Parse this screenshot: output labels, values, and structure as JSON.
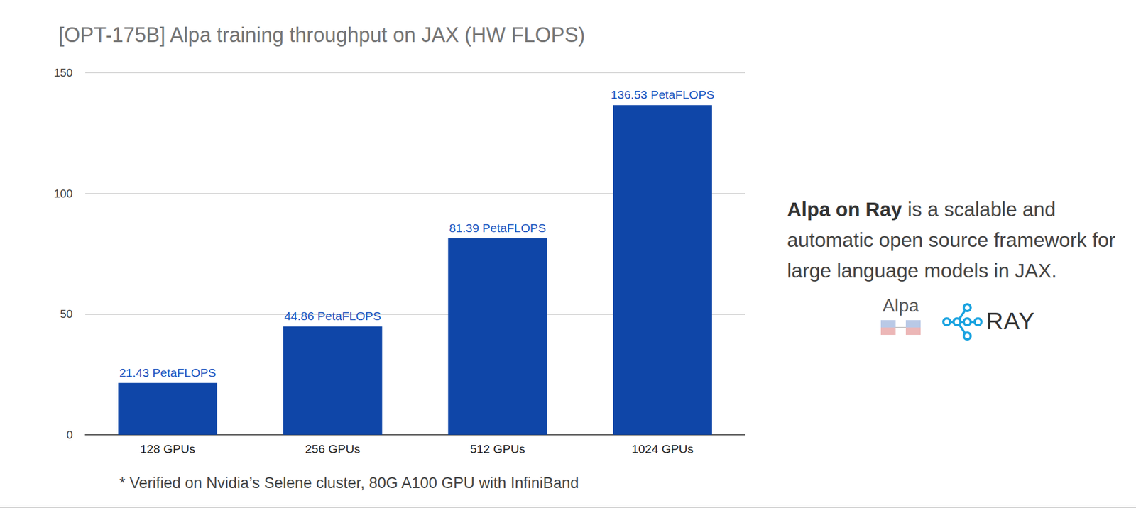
{
  "chart_data": {
    "type": "bar",
    "title": "[OPT-175B] Alpa training throughput on JAX (HW FLOPS)",
    "categories": [
      "128 GPUs",
      "256 GPUs",
      "512 GPUs",
      "1024 GPUs"
    ],
    "values": [
      21.43,
      44.86,
      81.39,
      136.53
    ],
    "value_labels": [
      "21.43 PetaFLOPS",
      "44.86 PetaFLOPS",
      "81.39 PetaFLOPS",
      "136.53 PetaFLOPS"
    ],
    "data_labels": true,
    "color": "#0f46a8",
    "ylim": [
      0,
      150
    ],
    "yticks": [
      0,
      50,
      100,
      150
    ],
    "grid": true,
    "annotations": [
      "* Verified on Nvidia’s Selene cluster, 80G A100 GPU with InfiniBand",
      "Alpa on Ray",
      "is a scalable and automatic open source framework for large language models in JAX.",
      "Alpa",
      "RAY"
    ]
  }
}
